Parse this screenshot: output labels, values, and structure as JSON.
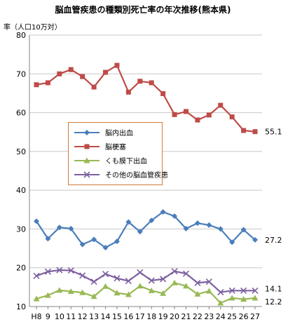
{
  "chart_data": {
    "type": "line",
    "title": "脳血管疾患の種類別死亡率の年次推移(熊本県)",
    "ylabel": "率（人口10万対）",
    "xlabel": "",
    "categories": [
      "H8",
      "9",
      "10",
      "11",
      "12",
      "13",
      "14",
      "15",
      "16",
      "17",
      "18",
      "19",
      "20",
      "21",
      "22",
      "23",
      "24",
      "25",
      "26",
      "27"
    ],
    "ylim": [
      10,
      80
    ],
    "yticks": [
      10,
      20,
      30,
      40,
      50,
      60,
      70,
      80
    ],
    "grid": true,
    "legend_position": "center-left",
    "series": [
      {
        "name": "脳内出血",
        "color": "#4a7ebb",
        "marker": "diamond",
        "values": [
          32.0,
          27.5,
          30.4,
          30.1,
          26.0,
          27.3,
          25.2,
          26.8,
          31.8,
          29.3,
          32.2,
          34.4,
          33.3,
          30.1,
          31.5,
          31.0,
          30.0,
          26.6,
          29.8,
          27.2
        ]
      },
      {
        "name": "脳梗塞",
        "color": "#be4b48",
        "marker": "square",
        "values": [
          67.2,
          67.7,
          70.0,
          71.1,
          69.3,
          66.6,
          70.4,
          72.2,
          65.3,
          68.1,
          67.7,
          64.9,
          59.5,
          60.3,
          58.1,
          59.4,
          61.9,
          58.9,
          55.4,
          55.1
        ]
      },
      {
        "name": "くも膜下出血",
        "color": "#98b954",
        "marker": "triangle",
        "values": [
          12.0,
          12.9,
          14.2,
          13.9,
          13.6,
          12.6,
          15.2,
          13.5,
          13.1,
          15.3,
          14.1,
          13.4,
          16.1,
          15.3,
          13.2,
          14.0,
          10.9,
          12.2,
          11.9,
          12.2
        ]
      },
      {
        "name": "その他の脳血管疾患",
        "color": "#7d60a0",
        "marker": "x",
        "values": [
          17.9,
          19.0,
          19.4,
          19.3,
          18.0,
          16.4,
          18.4,
          17.3,
          16.6,
          18.8,
          16.7,
          17.1,
          19.1,
          18.5,
          16.1,
          16.4,
          13.7,
          14.1,
          14.1,
          14.1
        ]
      }
    ],
    "end_labels": [
      "27.2",
      "55.1",
      "12.2",
      "14.1"
    ]
  }
}
